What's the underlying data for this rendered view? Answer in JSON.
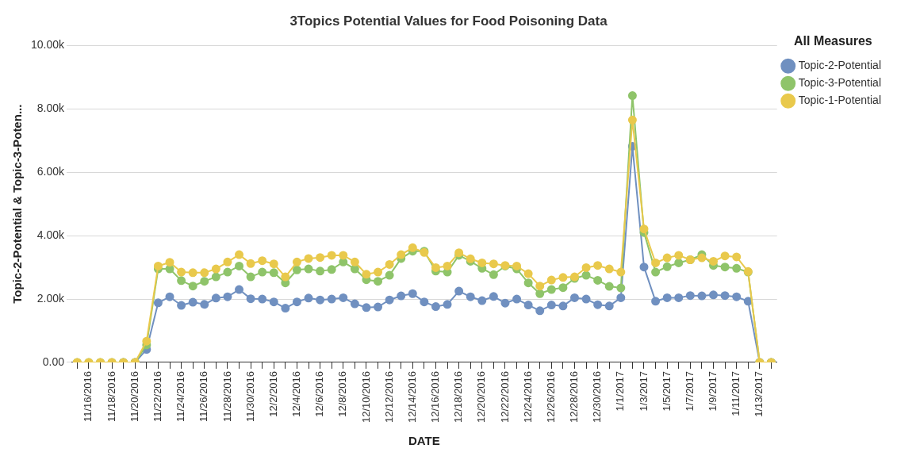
{
  "chart_data": {
    "type": "line",
    "title": "3Topics Potential Values for Food Poisoning Data",
    "xlabel": "DATE",
    "ylabel": "Topic-2-Potential & Topic-3-Poten...",
    "legend_title": "All Measures",
    "legend": "top right",
    "grid": "y",
    "marker": "circle",
    "line_style": "solid",
    "categories": [
      null,
      "11/16/2016",
      null,
      "11/18/2016",
      null,
      "11/20/2016",
      null,
      "11/22/2016",
      null,
      "11/24/2016",
      null,
      "11/26/2016",
      null,
      "11/28/2016",
      null,
      "11/30/2016",
      null,
      "12/2/2016",
      null,
      "12/4/2016",
      null,
      "12/6/2016",
      null,
      "12/8/2016",
      null,
      "12/10/2016",
      null,
      "12/12/2016",
      null,
      "12/14/2016",
      null,
      "12/16/2016",
      null,
      "12/18/2016",
      null,
      "12/20/2016",
      null,
      "12/22/2016",
      null,
      "12/24/2016",
      null,
      "12/26/2016",
      null,
      "12/28/2016",
      null,
      "12/30/2016",
      null,
      "1/1/2017",
      null,
      "1/3/2017",
      null,
      "1/5/2017",
      null,
      "1/7/2017",
      null,
      "1/9/2017",
      null,
      "1/11/2017",
      null,
      "1/13/2017",
      null
    ],
    "ylim": [
      0,
      10000
    ],
    "yticks": [
      {
        "value": 0,
        "label": "0.00"
      },
      {
        "value": 2000,
        "label": "2.00k"
      },
      {
        "value": 4000,
        "label": "4.00k"
      },
      {
        "value": 6000,
        "label": "6.00k"
      },
      {
        "value": 8000,
        "label": "8.00k"
      },
      {
        "value": 10000,
        "label": "10.00k"
      }
    ],
    "series": [
      {
        "name": "Topic-2-Potential",
        "color": "#7090c0",
        "values": [
          null,
          null,
          null,
          null,
          0,
          0,
          410,
          1880,
          2070,
          1800,
          1900,
          1830,
          2030,
          2070,
          2300,
          2010,
          2000,
          1910,
          1710,
          1910,
          2030,
          1970,
          2000,
          2040,
          1850,
          1730,
          1750,
          1970,
          2100,
          2170,
          1910,
          1760,
          1830,
          2250,
          2070,
          1950,
          2080,
          1870,
          2000,
          1810,
          1630,
          1810,
          1780,
          2040,
          2000,
          1820,
          1780,
          2040,
          6820,
          3010,
          1930,
          2040,
          2040,
          2110,
          2100,
          2130,
          2110,
          2070,
          1930,
          0,
          0
        ]
      },
      {
        "name": "Topic-3-Potential",
        "color": "#8fc46a",
        "values": [
          0,
          0,
          0,
          0,
          0,
          0,
          550,
          2950,
          2950,
          2580,
          2410,
          2560,
          2700,
          2850,
          3040,
          2700,
          2850,
          2830,
          2510,
          2920,
          2950,
          2880,
          2930,
          3170,
          2950,
          2610,
          2560,
          2750,
          3280,
          3510,
          3510,
          2880,
          2850,
          3380,
          3190,
          2970,
          2770,
          3040,
          2950,
          2510,
          2170,
          2300,
          2360,
          2650,
          2750,
          2590,
          2400,
          2350,
          8420,
          4100,
          2850,
          3020,
          3140,
          3240,
          3400,
          3060,
          3010,
          2970,
          2850,
          0,
          0
        ]
      },
      {
        "name": "Topic-1-Potential",
        "color": "#e9c94c",
        "values": [
          0,
          0,
          0,
          0,
          0,
          0,
          670,
          3040,
          3160,
          2850,
          2830,
          2830,
          2950,
          3170,
          3400,
          3120,
          3210,
          3110,
          2700,
          3170,
          3280,
          3310,
          3380,
          3380,
          3170,
          2780,
          2850,
          3090,
          3400,
          3620,
          3470,
          2990,
          3040,
          3460,
          3270,
          3140,
          3110,
          3060,
          3040,
          2800,
          2410,
          2600,
          2680,
          2700,
          2990,
          3060,
          2950,
          2850,
          7650,
          4210,
          3140,
          3300,
          3380,
          3240,
          3300,
          3190,
          3360,
          3330,
          2870,
          0,
          0
        ]
      }
    ]
  }
}
